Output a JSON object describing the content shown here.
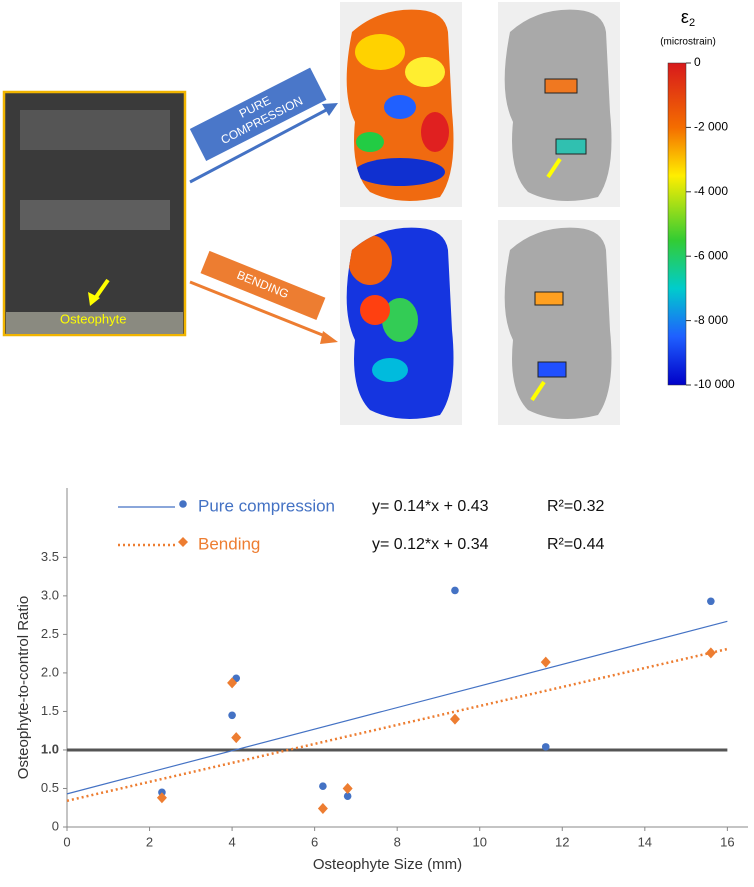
{
  "figure": {
    "labels": {
      "compression": "PURE COMPRESSION",
      "bending": "BENDING",
      "osteophyte": "Osteophyte"
    }
  },
  "colorbar": {
    "symbol": "ε",
    "subscript": "2",
    "unit": "(microstrain)",
    "clim": [
      -10000,
      0
    ],
    "ticks": [
      0,
      {
        "value": -2000,
        "label": "-2 000"
      },
      {
        "value": -4000,
        "label": "-4 000"
      },
      {
        "value": -6000,
        "label": "-6 000"
      },
      {
        "value": -8000,
        "label": "-8 000"
      },
      {
        "value": -10000,
        "label": "-10 000"
      }
    ]
  },
  "chart_data": {
    "type": "scatter",
    "xlabel": "Osteophyte Size (mm)",
    "ylabel": "Osteophyte-to-control Ratio",
    "xlim": [
      0,
      16.5
    ],
    "ylim": [
      0,
      4.4
    ],
    "xticks": [
      0,
      2,
      4,
      6,
      8,
      10,
      12,
      14,
      16
    ],
    "yticks": [
      0,
      0.5,
      {
        "value": 1,
        "label": "1.0"
      },
      1.5,
      {
        "value": 2,
        "label": "2.0"
      },
      2.5,
      {
        "value": 3,
        "label": "3.0"
      },
      3.5
    ],
    "series": [
      {
        "name": "Pure compression",
        "color": "#4472c4",
        "marker": "circle",
        "x": [
          2.3,
          4.0,
          4.1,
          6.2,
          6.8,
          9.4,
          11.6,
          15.6
        ],
        "values": [
          0.45,
          1.45,
          1.93,
          0.53,
          0.4,
          3.07,
          1.04,
          2.93
        ]
      },
      {
        "name": "Bending",
        "color": "#ed7d31",
        "marker": "diamond",
        "x": [
          2.3,
          4.0,
          4.1,
          6.2,
          6.8,
          9.4,
          11.6,
          15.6
        ],
        "values": [
          0.38,
          1.87,
          1.16,
          0.24,
          0.5,
          1.4,
          2.14,
          2.26
        ]
      }
    ],
    "trendlines": [
      {
        "equation": "y= 0.14*x + 0.43",
        "r2": "R²=0.32",
        "color": "#4472c4",
        "style": "solid",
        "x": [
          0,
          16
        ],
        "values": [
          0.43,
          2.67
        ]
      },
      {
        "equation": "y= 0.12*x + 0.34",
        "r2": "R²=0.44",
        "color": "#ed7d31",
        "style": "dotted",
        "x": [
          0,
          16
        ],
        "values": [
          0.34,
          2.31
        ]
      }
    ],
    "reference_line": {
      "value": 1,
      "color": "#555555"
    }
  }
}
